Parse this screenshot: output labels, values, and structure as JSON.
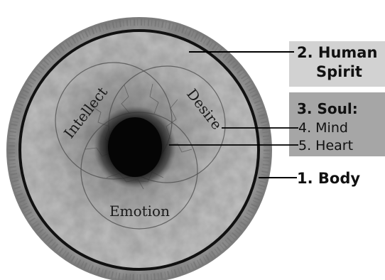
{
  "labels": {
    "spirit_line1": "2. Human",
    "spirit_line2": "Spirit",
    "soul": "3. Soul:",
    "mind": "4. Mind",
    "heart": "5. Heart",
    "body": "1. Body"
  },
  "circle_labels": {
    "intellect": "Intellect",
    "desire": "Desire",
    "emotion": "Emotion"
  },
  "colors": {
    "spirit_box": "#d2d2d2",
    "soul_box": "#a6a6a6",
    "outer_ring": "#9a9a9a",
    "inner_disc": "#b4b4b4",
    "core": "#0a0a0a",
    "line": "#000000"
  }
}
